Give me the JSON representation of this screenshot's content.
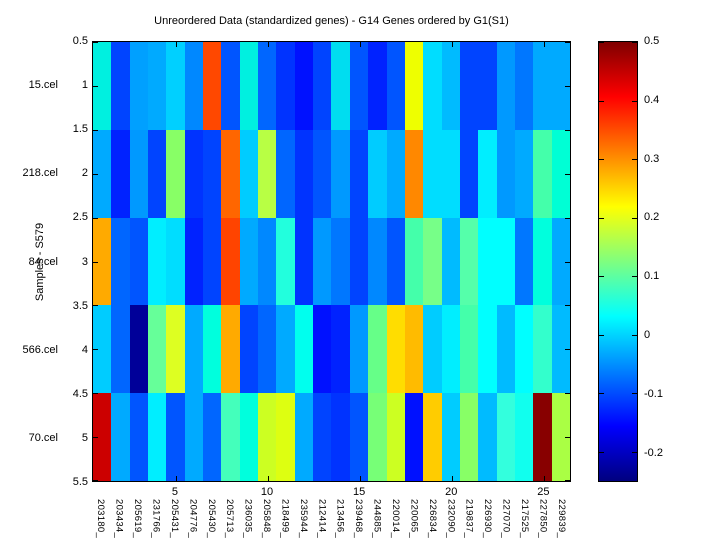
{
  "title": "Unreordered Data (standardized genes) - G14 Genes ordered by G1(S1)",
  "y_axis_label": "Samples - S579",
  "sample_labels": [
    "15.cel",
    "218.cel",
    "84.cel",
    "566.cel",
    "70.cel"
  ],
  "y_ticks": [
    0.5,
    1,
    1.5,
    2,
    2.5,
    3,
    3.5,
    4,
    4.5,
    5,
    5.5
  ],
  "x_ticks": [
    5,
    10,
    15,
    20,
    25
  ],
  "gene_labels": [
    "203180_",
    "203434_",
    "205619_",
    "231766_",
    "205431_",
    "204776_",
    "205430_",
    "205713_",
    "236035_",
    "205848_",
    "218499_",
    "235944_",
    "212414_",
    "213456_",
    "239468_",
    "244885_",
    "220014_",
    "220065_",
    "226834_",
    "232090_",
    "219837_",
    "226930_",
    "227070_",
    "217525_",
    "227850_",
    "229839_"
  ],
  "colorbar": {
    "tick_labels": [
      "0.5",
      "0.4",
      "0.3",
      "0.2",
      "0.1",
      "0",
      "-0.1",
      "-0.2"
    ],
    "tick_values": [
      0.5,
      0.4,
      0.3,
      0.2,
      0.1,
      0,
      -0.1,
      -0.2
    ],
    "min": -0.25,
    "max": 0.5,
    "colormap": "jet"
  },
  "chart_data": {
    "type": "heatmap",
    "title": "Unreordered Data (standardized genes) - G14 Genes ordered by G1(S1)",
    "ylabel": "Samples - S579",
    "rows": [
      "15.cel",
      "218.cel",
      "84.cel",
      "566.cel",
      "70.cel"
    ],
    "columns": [
      "203180_",
      "203434_",
      "205619_",
      "231766_",
      "205431_",
      "204776_",
      "205430_",
      "205713_",
      "236035_",
      "205848_",
      "218499_",
      "235944_",
      "212414_",
      "213456_",
      "239468_",
      "244885_",
      "220014_",
      "220065_",
      "226834_",
      "232090_",
      "219837_",
      "226930_",
      "227070_",
      "217525_",
      "227850_",
      "229839_"
    ],
    "vmin": -0.25,
    "vmax": 0.5,
    "colormap": "jet",
    "values": [
      [
        0.03,
        -0.115,
        -0.05,
        -0.045,
        -0.02,
        -0.06,
        0.36,
        -0.1,
        0.03,
        -0.085,
        -0.13,
        -0.145,
        -0.115,
        0,
        -0.1,
        -0.14,
        -0.1,
        0.21,
        -0.005,
        -0.025,
        -0.115,
        -0.115,
        -0.05,
        -0.065,
        -0.045,
        -0.045
      ],
      [
        -0.045,
        -0.14,
        -0.05,
        -0.115,
        0.13,
        -0.13,
        -0.115,
        0.335,
        -0.025,
        0.16,
        -0.085,
        -0.13,
        -0.1,
        -0.05,
        -0.115,
        -0.025,
        -0.045,
        0.31,
        -0.005,
        -0.005,
        -0.115,
        -0.005,
        -0.05,
        -0.045,
        0.09,
        0.06
      ],
      [
        0.285,
        -0.085,
        -0.1,
        -0.005,
        -0.005,
        -0.14,
        -0.115,
        0.36,
        -0.045,
        -0.06,
        0.06,
        -0.13,
        -0.05,
        -0.065,
        -0.115,
        -0.06,
        -0.1,
        0.09,
        0.11,
        -0.025,
        0.095,
        0.03,
        0.03,
        -0.065,
        0.06,
        -0.045
      ],
      [
        -0.025,
        -0.085,
        -0.22,
        0.11,
        0.185,
        -0.045,
        0.06,
        0.275,
        -0.115,
        -0.085,
        -0.045,
        0.035,
        -0.145,
        -0.14,
        -0.05,
        0.11,
        0.245,
        0.26,
        -0.025,
        -0.005,
        0.09,
        0.03,
        -0.025,
        0.03,
        0.07,
        -0.025
      ],
      [
        0.44,
        -0.045,
        -0.1,
        -0.005,
        -0.1,
        -0.045,
        -0.085,
        0.095,
        0.06,
        0.185,
        0.19,
        -0.045,
        -0.115,
        -0.13,
        -0.1,
        0.11,
        0.185,
        -0.145,
        0.245,
        -0.025,
        0.13,
        -0.025,
        0.07,
        0.075,
        0.49,
        0.17
      ]
    ],
    "cell_colors": [
      [
        "#00F0E0",
        "#0044FF",
        "#00A0FF",
        "#00AAFF",
        "#00D0FF",
        "#0088FF",
        "#FF4800",
        "#0055FF",
        "#00F0E0",
        "#0066FF",
        "#0033FF",
        "#0011FF",
        "#0044FF",
        "#00DDF0",
        "#0055FF",
        "#0022FF",
        "#0055FF",
        "#EEFF00",
        "#00DDFF",
        "#00BBFF",
        "#0044FF",
        "#0044FF",
        "#0099FF",
        "#0077FF",
        "#00AAFF",
        "#00AAFF"
      ],
      [
        "#00AAFF",
        "#0022FF",
        "#0099FF",
        "#0044FF",
        "#88FF66",
        "#0033FF",
        "#0044FF",
        "#FF6600",
        "#00CCFF",
        "#B8FF44",
        "#0066FF",
        "#0033FF",
        "#0055FF",
        "#0099FF",
        "#0044FF",
        "#00CCFF",
        "#00AAFF",
        "#FF8800",
        "#00DDFF",
        "#00DDFF",
        "#0044FF",
        "#00EEFF",
        "#0099FF",
        "#00AAFF",
        "#44FFAA",
        "#00FFD5"
      ],
      [
        "#FFAA00",
        "#0066FF",
        "#0055FF",
        "#00EEFF",
        "#00DDFF",
        "#0022FF",
        "#0044FF",
        "#FF4400",
        "#00AAFF",
        "#0088FF",
        "#22FFDD",
        "#0033FF",
        "#0099FF",
        "#0077FF",
        "#0044FF",
        "#0088FF",
        "#0055FF",
        "#44FFAA",
        "#77FF88",
        "#00BBFF",
        "#55FFAA",
        "#00FFFF",
        "#00FFFF",
        "#0077FF",
        "#00FFDD",
        "#00AAFF"
      ],
      [
        "#00CCFF",
        "#0066FF",
        "#000099",
        "#66FF99",
        "#DDFF22",
        "#00AAFF",
        "#00FFDD",
        "#FFAA00",
        "#0044FF",
        "#0066FF",
        "#00AAFF",
        "#00FFEE",
        "#0011FF",
        "#0022FF",
        "#0099FF",
        "#66FF88",
        "#FFDD00",
        "#FFBB00",
        "#00CCFF",
        "#00EEFF",
        "#44FFAA",
        "#00FFFF",
        "#00BBFF",
        "#00FFFF",
        "#33FFCC",
        "#00BBFF"
      ],
      [
        "#CC0000",
        "#00AAFF",
        "#0055FF",
        "#00EEFF",
        "#0055FF",
        "#00AAFF",
        "#0066FF",
        "#44FFBB",
        "#00FFDD",
        "#CCFF22",
        "#DDFF11",
        "#00AAFF",
        "#0044FF",
        "#0033FF",
        "#0055FF",
        "#77FF77",
        "#CCFF22",
        "#0011FF",
        "#FFCC00",
        "#00CCFF",
        "#88FF66",
        "#00BBFF",
        "#33FFDD",
        "#11FFEE",
        "#880000",
        "#AAFF44"
      ]
    ]
  }
}
